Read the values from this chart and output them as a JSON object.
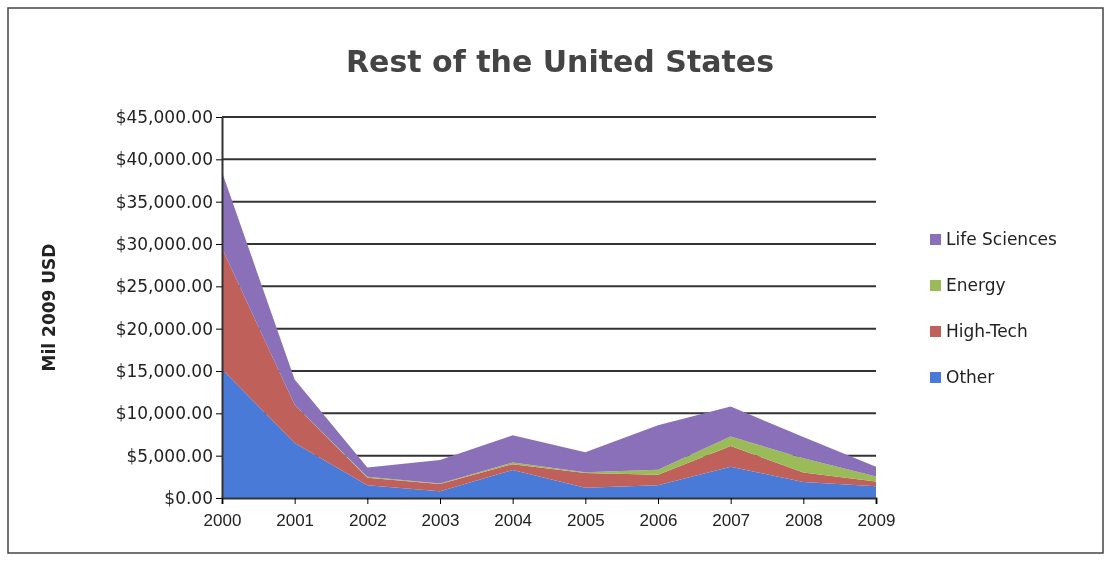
{
  "chart_data": {
    "type": "area",
    "stacked": true,
    "title": "Rest of the United States",
    "ylabel": "Mil 2009 USD",
    "categories": [
      "2000",
      "2001",
      "2002",
      "2003",
      "2004",
      "2005",
      "2006",
      "2007",
      "2008",
      "2009"
    ],
    "series": [
      {
        "name": "Other",
        "color": "#4a7ad8",
        "values": [
          15200,
          6500,
          1500,
          800,
          3300,
          1200,
          1500,
          3700,
          1900,
          1400
        ]
      },
      {
        "name": "High-Tech",
        "color": "#c0605a",
        "values": [
          14300,
          4500,
          900,
          850,
          700,
          1750,
          1250,
          2450,
          1100,
          550
        ]
      },
      {
        "name": "Energy",
        "color": "#9bbb59",
        "values": [
          0,
          0,
          100,
          50,
          200,
          100,
          600,
          1100,
          1700,
          600
        ]
      },
      {
        "name": "Life Sciences",
        "color": "#8a70b8",
        "values": [
          9000,
          3000,
          1100,
          2800,
          3200,
          2350,
          5250,
          3550,
          2500,
          1150
        ]
      }
    ],
    "ylim": [
      0,
      45000
    ],
    "yticks": [
      {
        "value": 0,
        "label": "$0.00"
      },
      {
        "value": 5000,
        "label": "$5,000.00"
      },
      {
        "value": 10000,
        "label": "$10,000.00"
      },
      {
        "value": 15000,
        "label": "$15,000.00"
      },
      {
        "value": 20000,
        "label": "$20,000.00"
      },
      {
        "value": 25000,
        "label": "$25,000.00"
      },
      {
        "value": 30000,
        "label": "$30,000.00"
      },
      {
        "value": 35000,
        "label": "$35,000.00"
      },
      {
        "value": 40000,
        "label": "$40,000.00"
      },
      {
        "value": 45000,
        "label": "$45,000.00"
      }
    ],
    "grid": "y",
    "legend": "right"
  }
}
